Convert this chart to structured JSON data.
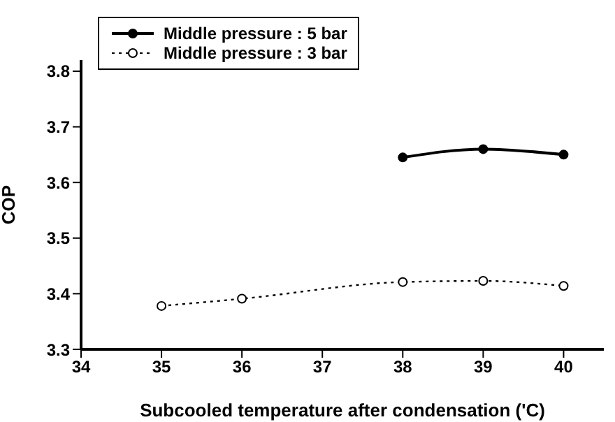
{
  "chart_data": {
    "type": "line",
    "xlabel": "Subcooled temperature after condensation ('C)",
    "ylabel": "COP",
    "xlim": [
      34,
      40.5
    ],
    "xticks": [
      34,
      35,
      36,
      37,
      38,
      39,
      40
    ],
    "ylim": [
      3.3,
      3.82
    ],
    "yticks": [
      3.3,
      3.4,
      3.5,
      3.6,
      3.7,
      3.8
    ],
    "grid": false,
    "legend": "top left",
    "series": [
      {
        "name": "Middle pressure : 5 bar",
        "color": "#000000",
        "x": [
          38,
          39,
          40
        ],
        "values": [
          3.645,
          3.66,
          3.65
        ],
        "line_style": "solid",
        "marker": "circle"
      },
      {
        "name": "Middle pressure : 3 bar",
        "color": "#000000",
        "x": [
          35,
          36,
          38,
          39,
          40
        ],
        "values": [
          3.378,
          3.391,
          3.421,
          3.423,
          3.414
        ],
        "line_style": "dotted",
        "marker": "circle"
      }
    ]
  }
}
